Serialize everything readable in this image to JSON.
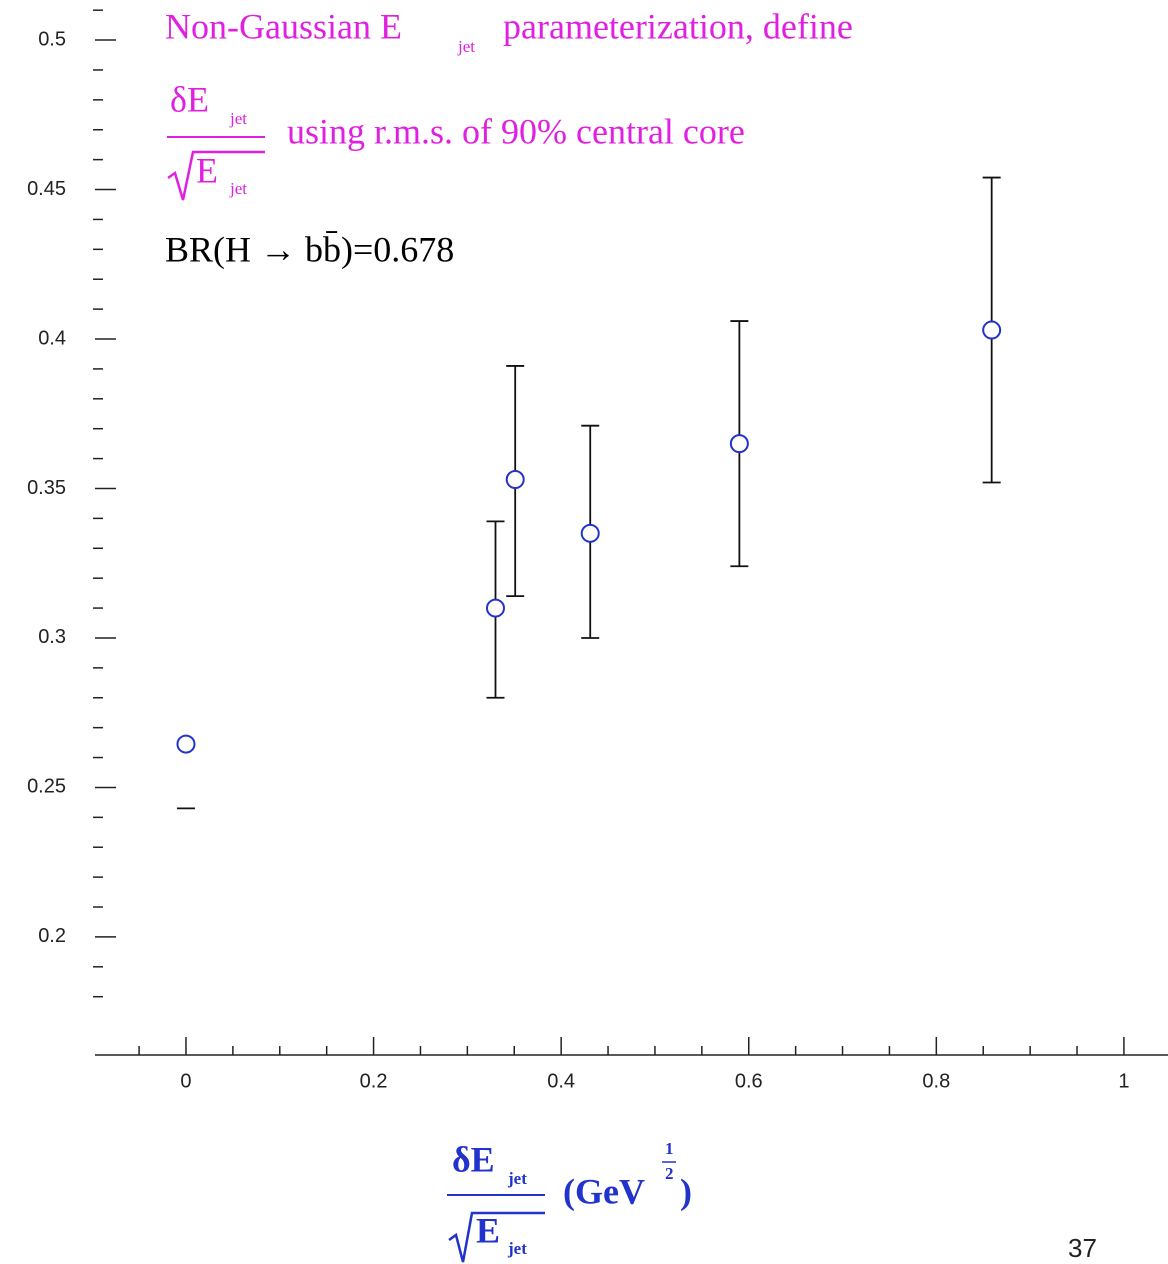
{
  "chart_data": {
    "type": "scatter",
    "annotation": {
      "line1": [
        "Non-Gaussian E",
        "jet",
        "parameterization, define"
      ],
      "frac_num": [
        "δE",
        "jet"
      ],
      "frac_den": [
        "E",
        "jet"
      ],
      "line2": "using r.m.s. of  90% central core",
      "br": "BR(H → bb̄)=0.678"
    },
    "xlabel": {
      "num": [
        "δE",
        "jet"
      ],
      "den": [
        "E",
        "jet"
      ],
      "unit": [
        "(GeV",
        "1",
        "2",
        ")"
      ]
    },
    "page_number": "37",
    "x": [
      0,
      0.33,
      0.351,
      0.431,
      0.59,
      0.859
    ],
    "values": [
      0.2645,
      0.31,
      0.353,
      0.335,
      0.365,
      0.403
    ],
    "y_low": [
      0.243,
      0.28,
      0.314,
      0.3,
      0.324,
      0.352
    ],
    "y_high": [
      null,
      0.339,
      0.391,
      0.371,
      0.406,
      0.454
    ],
    "color": "#2233cc",
    "error_color": "#111111",
    "xlim": [
      -0.097,
      1.047
    ],
    "ylim": [
      0.1605,
      0.5134
    ],
    "xticks": [
      0,
      0.2,
      0.4,
      0.6,
      0.8,
      1
    ],
    "yticks": [
      0.2,
      0.25,
      0.3,
      0.35,
      0.4,
      0.45,
      0.5
    ],
    "xminorticks": [
      -0.05,
      0.05,
      0.1,
      0.15,
      0.25,
      0.3,
      0.35,
      0.45,
      0.5,
      0.55,
      0.65,
      0.7,
      0.75,
      0.85,
      0.9,
      0.95
    ],
    "yminorticks": [
      0.18,
      0.19,
      0.21,
      0.22,
      0.23,
      0.24,
      0.26,
      0.27,
      0.28,
      0.29,
      0.31,
      0.32,
      0.33,
      0.34,
      0.36,
      0.37,
      0.38,
      0.39,
      0.41,
      0.42,
      0.43,
      0.44,
      0.46,
      0.47,
      0.48,
      0.49,
      0.51
    ]
  }
}
